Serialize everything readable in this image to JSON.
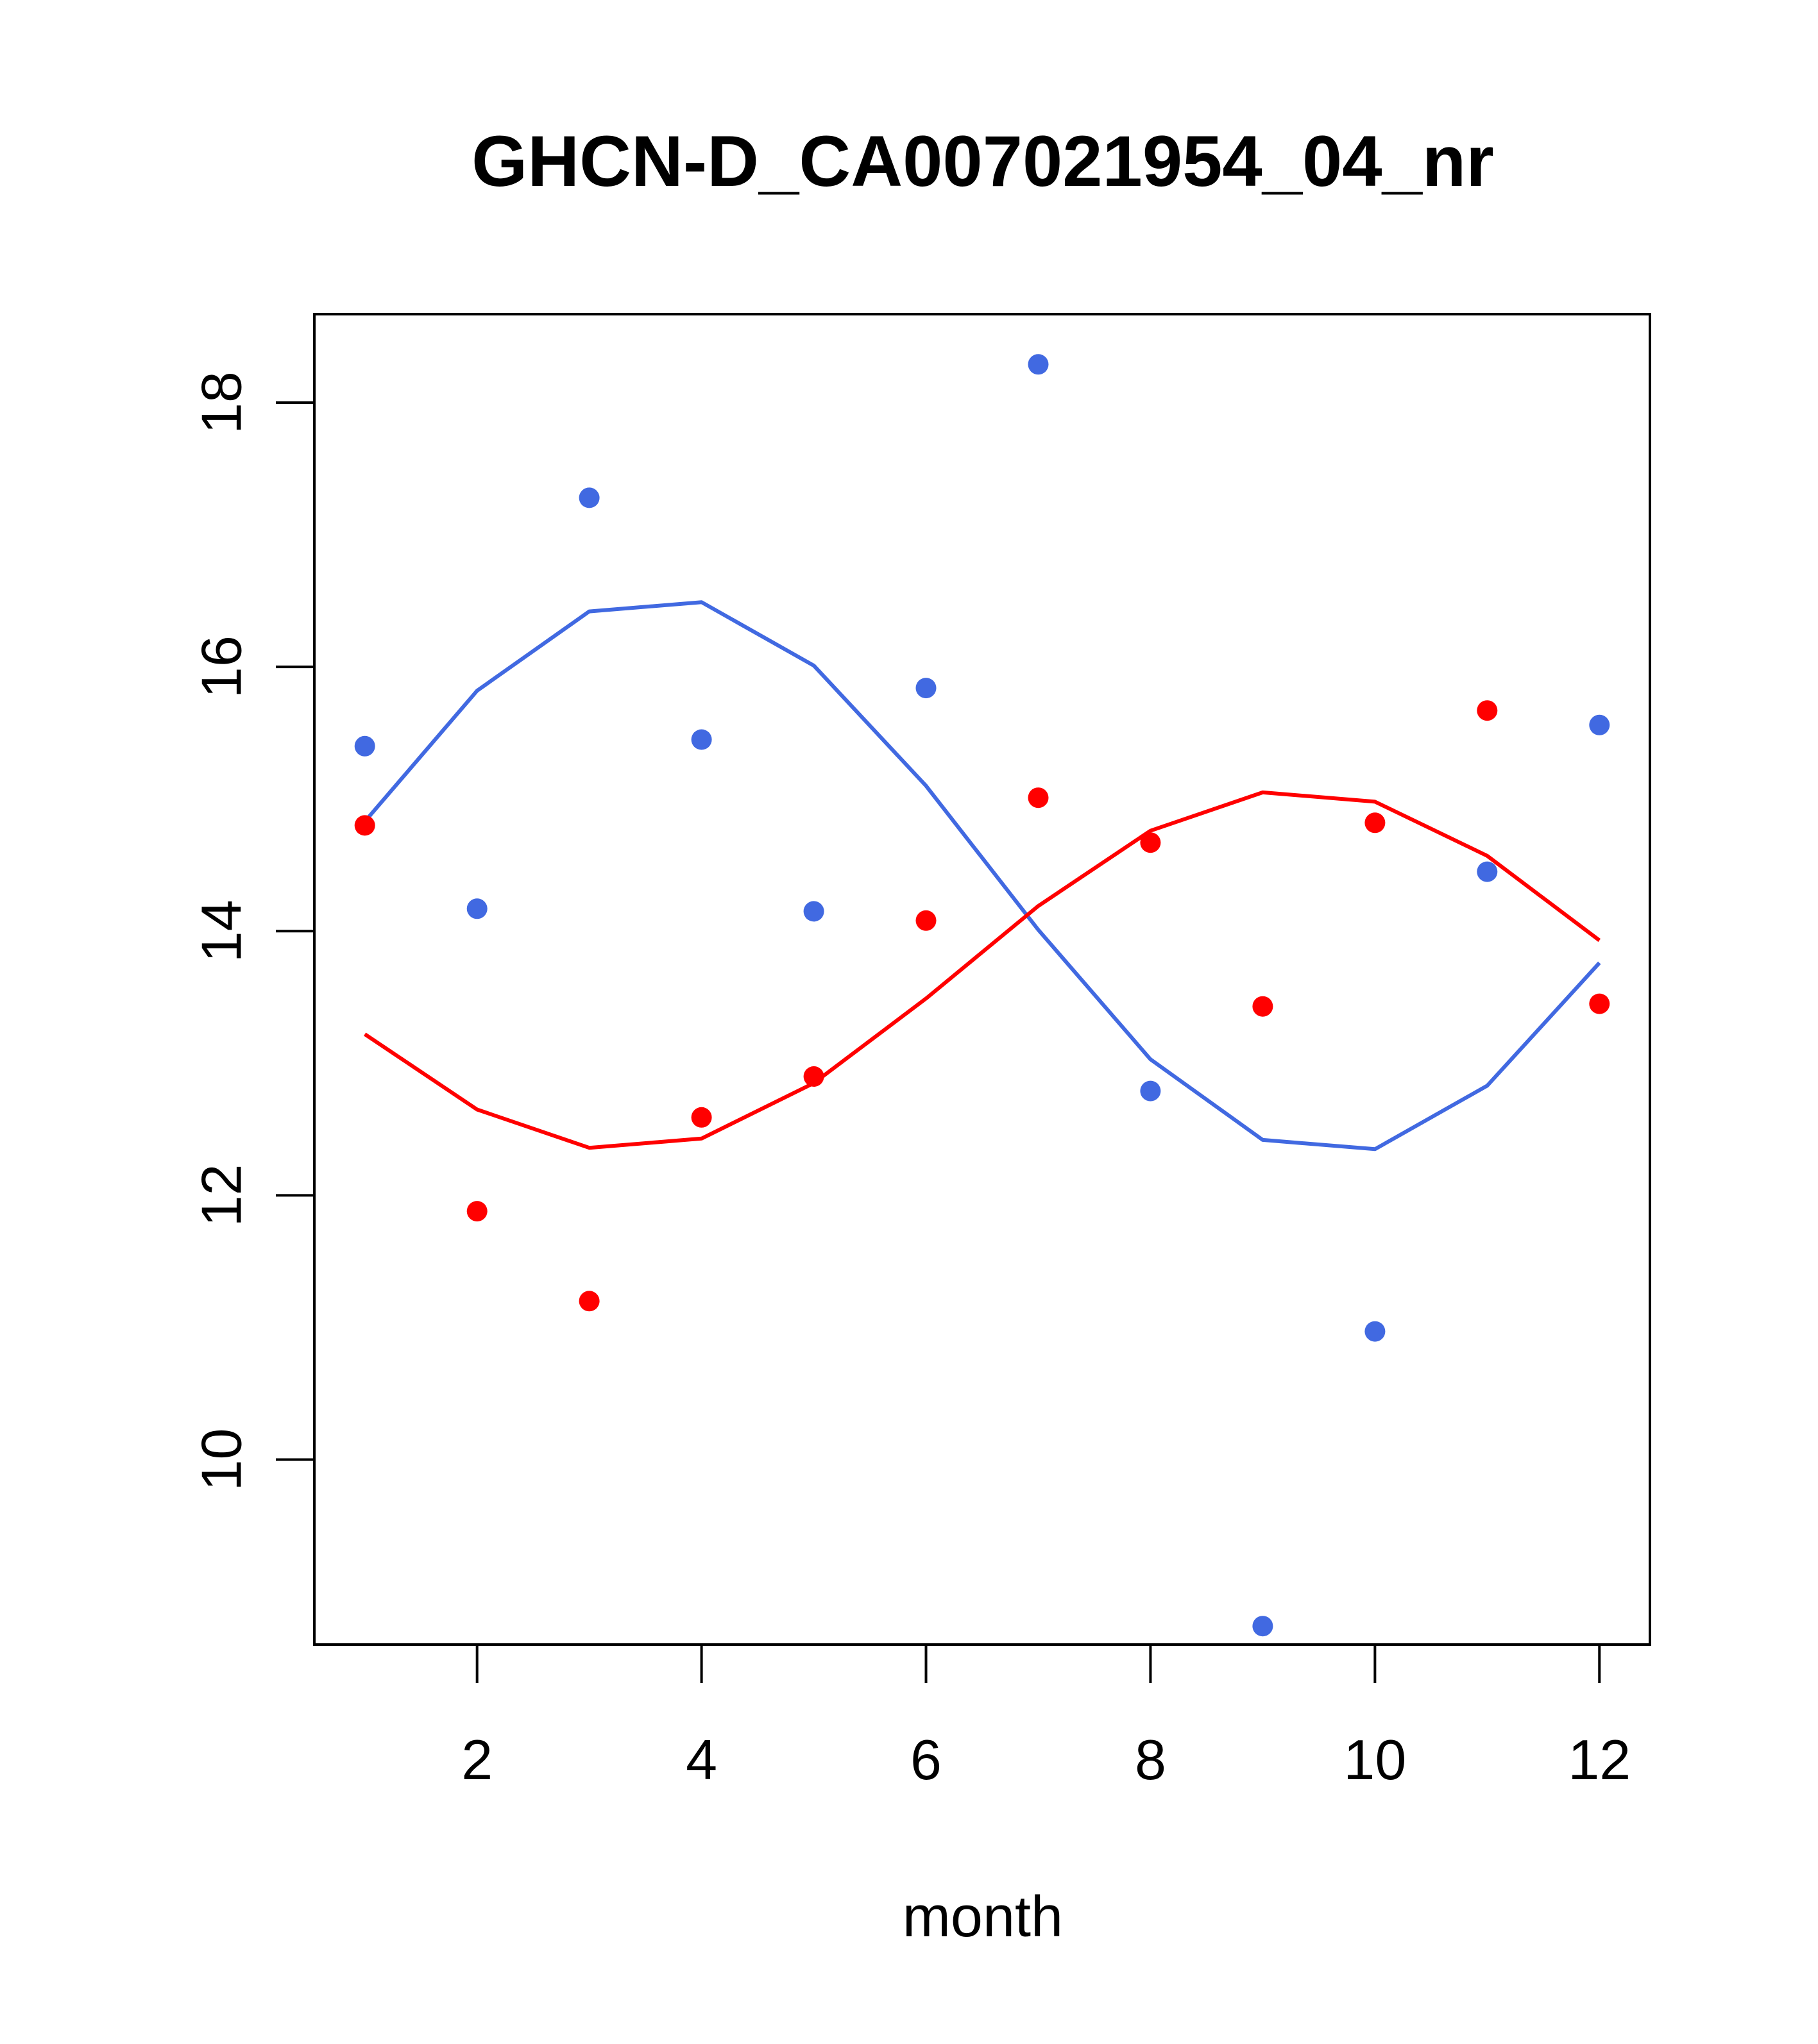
{
  "chart_data": {
    "type": "scatter",
    "title": "GHCN-D_CA007021954_04_nr",
    "xlabel": "month",
    "ylabel": "",
    "xlim": [
      0.55,
      12.45
    ],
    "ylim": [
      8.6,
      18.67
    ],
    "xticks": [
      2,
      4,
      6,
      8,
      10,
      12
    ],
    "yticks": [
      10,
      12,
      14,
      16,
      18
    ],
    "grid": false,
    "series": [
      {
        "color": "#4169E1",
        "points_x": [
          1,
          2,
          3,
          4,
          5,
          6,
          7,
          8,
          9,
          10,
          11,
          12
        ],
        "points_y": [
          15.4,
          14.17,
          17.28,
          15.45,
          14.15,
          15.84,
          18.29,
          12.79,
          8.74,
          10.97,
          14.45,
          15.56
        ],
        "line_x": [
          1,
          2,
          3,
          4,
          5,
          6,
          7,
          8,
          9,
          10,
          11,
          12
        ],
        "line_y": [
          14.83,
          15.82,
          16.42,
          16.49,
          16.01,
          15.1,
          14.01,
          13.03,
          12.42,
          12.35,
          12.83,
          13.76
        ]
      },
      {
        "color": "#FF0000",
        "points_x": [
          1,
          2,
          3,
          4,
          5,
          6,
          7,
          8,
          9,
          10,
          11,
          12
        ],
        "points_y": [
          14.8,
          11.88,
          11.2,
          12.59,
          12.9,
          14.08,
          15.01,
          14.67,
          13.43,
          14.82,
          15.67,
          13.45
        ],
        "line_x": [
          1,
          2,
          3,
          4,
          5,
          6,
          7,
          8,
          9,
          10,
          11,
          12
        ],
        "line_y": [
          13.22,
          12.65,
          12.36,
          12.43,
          12.85,
          13.49,
          14.19,
          14.76,
          15.05,
          14.98,
          14.57,
          13.93
        ]
      }
    ]
  }
}
